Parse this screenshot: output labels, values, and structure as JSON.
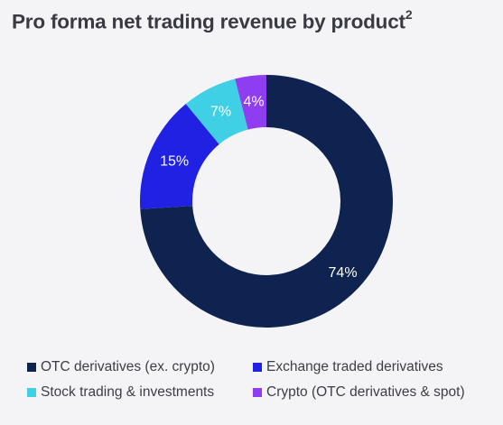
{
  "chart_data": {
    "type": "pie",
    "title": "Pro forma net trading revenue by product",
    "title_footnote": "2",
    "donut": true,
    "categories": [
      "OTC derivatives (ex. crypto)",
      "Exchange traded derivatives",
      "Stock trading & investments",
      "Crypto (OTC derivatives & spot)"
    ],
    "values": [
      74,
      15,
      7,
      4
    ],
    "value_labels": [
      "74%",
      "15%",
      "7%",
      "4%"
    ],
    "colors": [
      "#0e2350",
      "#2121e3",
      "#3fd0e6",
      "#8e3df0"
    ],
    "label_colors": [
      "#ffffff",
      "#ffffff",
      "#ffffff",
      "#ffffff"
    ],
    "legend_position": "bottom"
  }
}
